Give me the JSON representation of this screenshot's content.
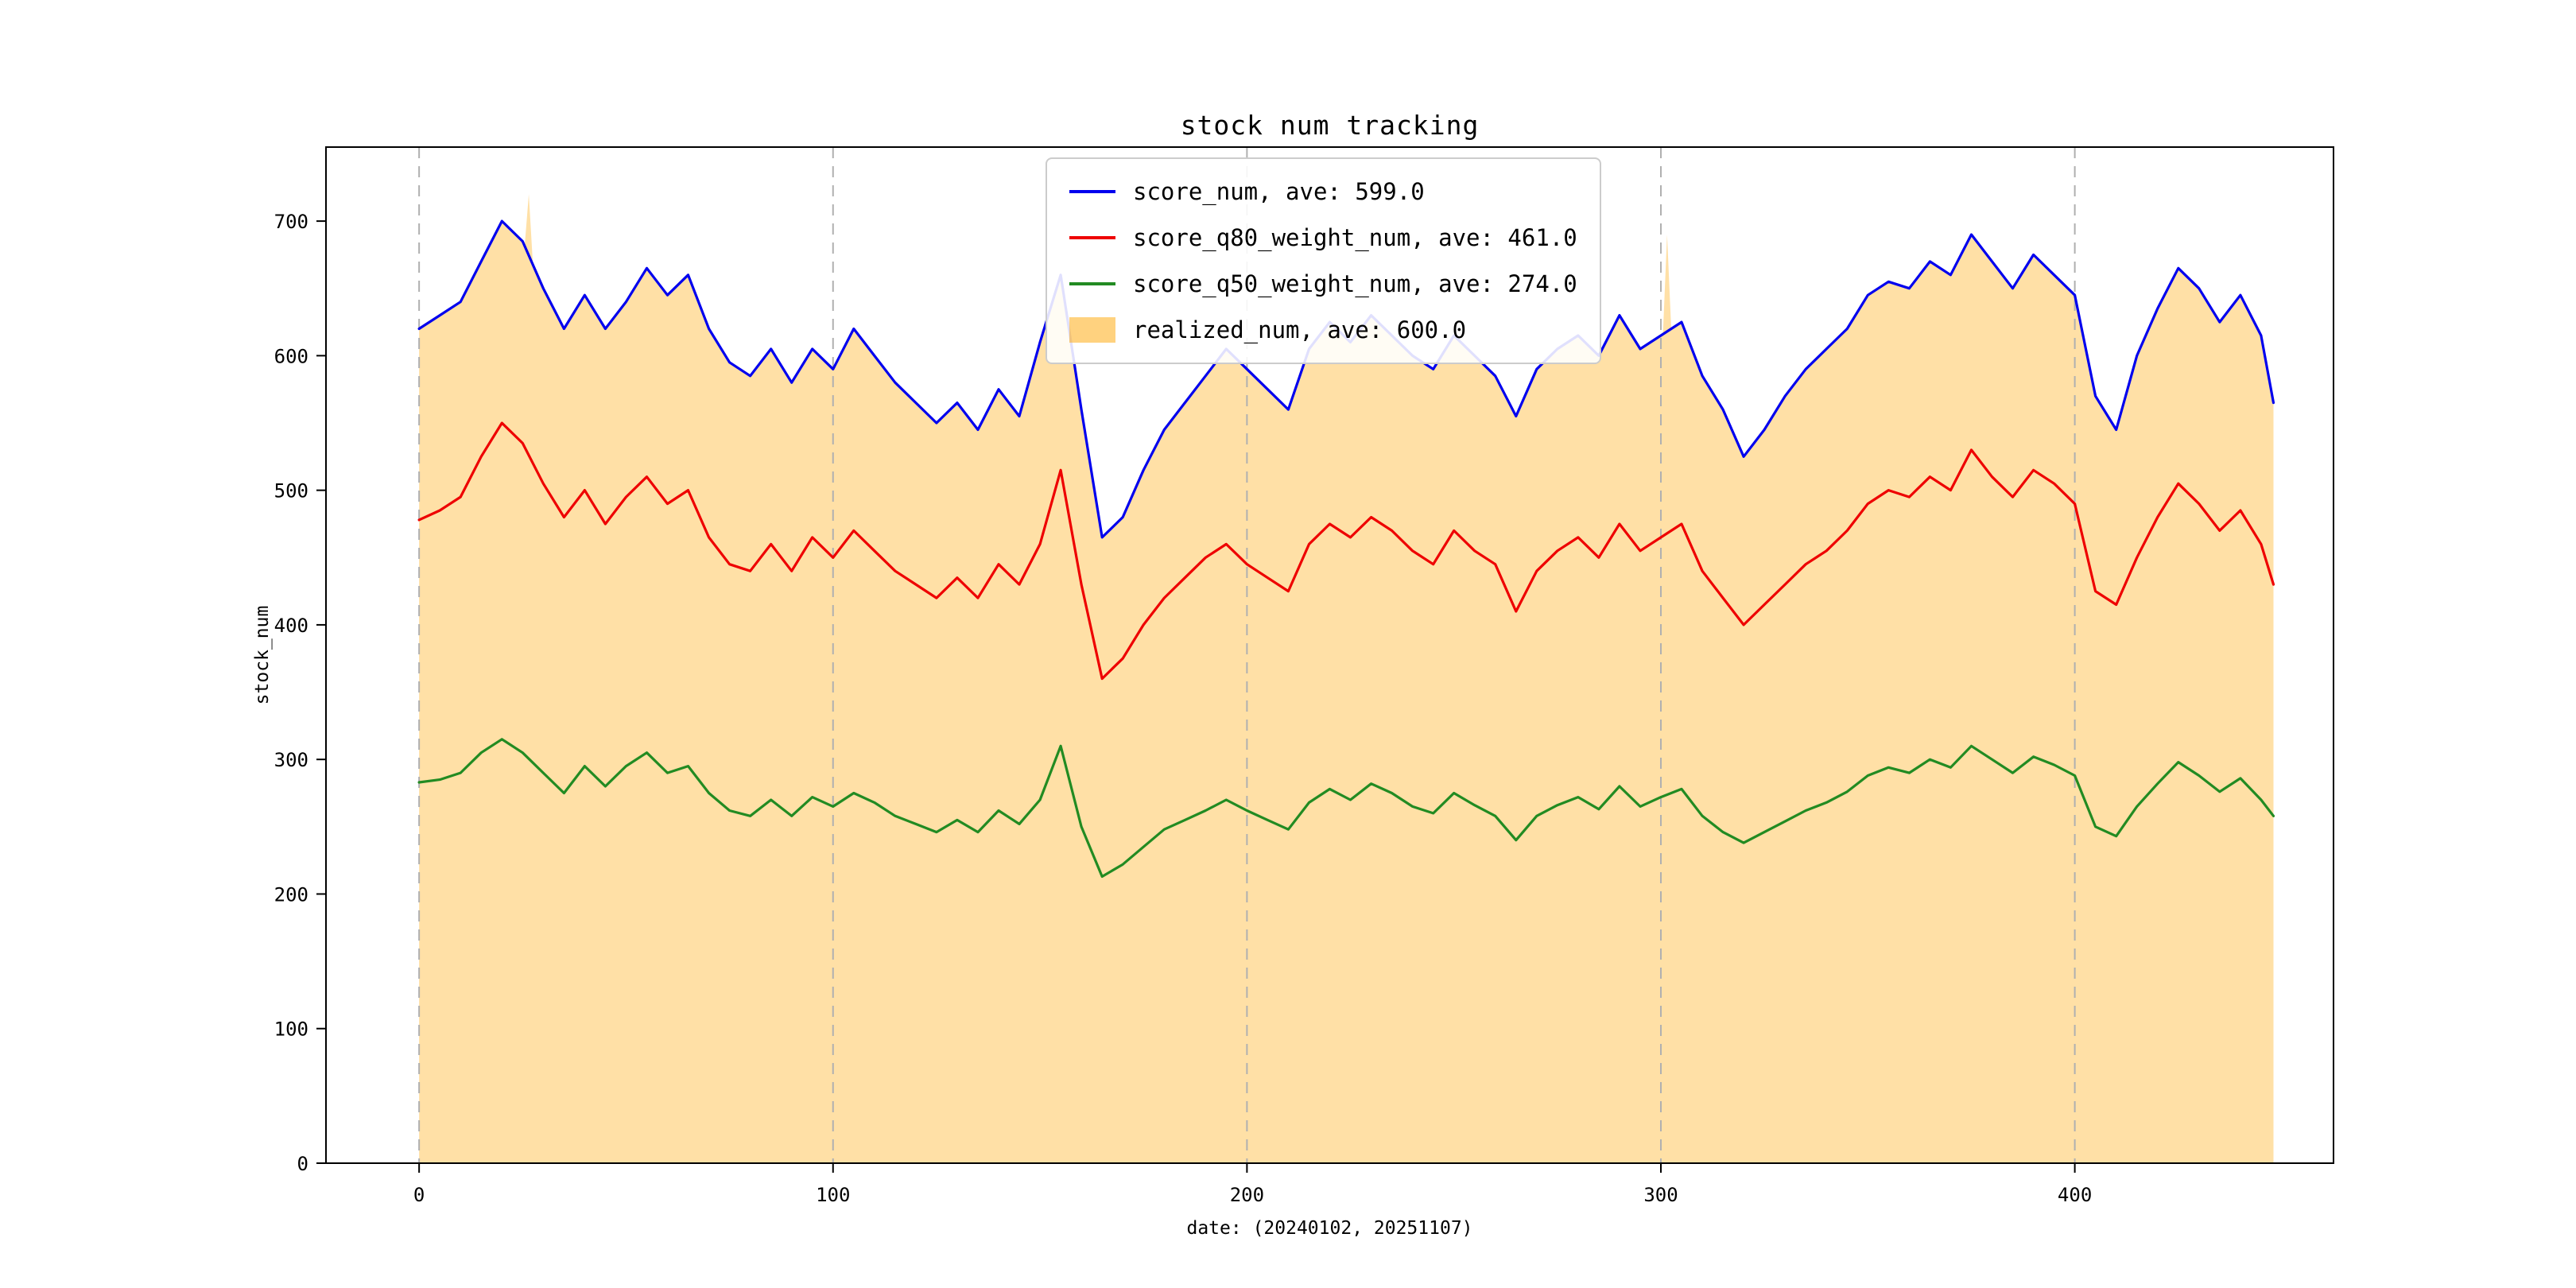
{
  "chart_data": {
    "type": "line",
    "title": "stock num tracking",
    "xlabel": "date: (20240102, 20251107)",
    "ylabel": "stock_num",
    "x_ticks": [
      0,
      100,
      200,
      300,
      400
    ],
    "y_ticks": [
      0,
      100,
      200,
      300,
      400,
      500,
      600,
      700
    ],
    "xlim": [
      -22.5,
      462.5
    ],
    "ylim": [
      0,
      755
    ],
    "grid": {
      "axis": "x",
      "style": "dashed",
      "color": "#b0b0b0"
    },
    "legend_position": "upper center-left",
    "sample_x": [
      0,
      5,
      10,
      15,
      20,
      25,
      30,
      35,
      40,
      45,
      50,
      55,
      60,
      65,
      70,
      75,
      80,
      85,
      90,
      95,
      100,
      105,
      110,
      115,
      120,
      125,
      130,
      135,
      140,
      145,
      150,
      155,
      160,
      165,
      170,
      175,
      180,
      185,
      190,
      195,
      200,
      205,
      210,
      215,
      220,
      225,
      230,
      235,
      240,
      245,
      250,
      255,
      260,
      265,
      270,
      275,
      280,
      285,
      290,
      295,
      300,
      305,
      310,
      315,
      320,
      325,
      330,
      335,
      340,
      345,
      350,
      355,
      360,
      365,
      370,
      375,
      380,
      385,
      390,
      395,
      400,
      405,
      410,
      415,
      420,
      425,
      430,
      435,
      440,
      445,
      448
    ],
    "series": [
      {
        "id": "score_num",
        "name": "score_num, ave: 599.0",
        "type": "line",
        "color": "#0000ee",
        "values": [
          620,
          630,
          640,
          670,
          700,
          685,
          650,
          620,
          645,
          620,
          640,
          665,
          645,
          660,
          620,
          595,
          585,
          605,
          580,
          605,
          590,
          620,
          600,
          580,
          565,
          550,
          565,
          545,
          575,
          555,
          610,
          660,
          560,
          465,
          480,
          515,
          545,
          565,
          585,
          605,
          590,
          575,
          560,
          605,
          625,
          610,
          630,
          615,
          600,
          590,
          615,
          600,
          585,
          555,
          590,
          605,
          615,
          600,
          630,
          605,
          615,
          625,
          585,
          560,
          525,
          545,
          570,
          590,
          605,
          620,
          645,
          655,
          650,
          670,
          660,
          690,
          670,
          650,
          675,
          660,
          645,
          570,
          545,
          600,
          635,
          665,
          650,
          625,
          645,
          615,
          565
        ]
      },
      {
        "id": "score_q80_weight_num",
        "name": "score_q80_weight_num, ave: 461.0",
        "type": "line",
        "color": "#ee0000",
        "values": [
          478,
          485,
          495,
          525,
          550,
          535,
          505,
          480,
          500,
          475,
          495,
          510,
          490,
          500,
          465,
          445,
          440,
          460,
          440,
          465,
          450,
          470,
          455,
          440,
          430,
          420,
          435,
          420,
          445,
          430,
          460,
          515,
          430,
          360,
          375,
          400,
          420,
          435,
          450,
          460,
          445,
          435,
          425,
          460,
          475,
          465,
          480,
          470,
          455,
          445,
          470,
          455,
          445,
          410,
          440,
          455,
          465,
          450,
          475,
          455,
          465,
          475,
          440,
          420,
          400,
          415,
          430,
          445,
          455,
          470,
          490,
          500,
          495,
          510,
          500,
          530,
          510,
          495,
          515,
          505,
          490,
          425,
          415,
          450,
          480,
          505,
          490,
          470,
          485,
          460,
          430
        ]
      },
      {
        "id": "score_q50_weight_num",
        "name": "score_q50_weight_num, ave: 274.0",
        "type": "line",
        "color": "#228b22",
        "values": [
          283,
          285,
          290,
          305,
          315,
          305,
          290,
          275,
          295,
          280,
          295,
          305,
          290,
          295,
          275,
          262,
          258,
          270,
          258,
          272,
          265,
          275,
          268,
          258,
          252,
          246,
          255,
          246,
          262,
          252,
          270,
          310,
          250,
          213,
          222,
          235,
          248,
          255,
          262,
          270,
          262,
          255,
          248,
          268,
          278,
          270,
          282,
          275,
          265,
          260,
          275,
          266,
          258,
          240,
          258,
          266,
          272,
          263,
          280,
          265,
          272,
          278,
          258,
          246,
          238,
          246,
          254,
          262,
          268,
          276,
          288,
          294,
          290,
          300,
          294,
          310,
          300,
          290,
          302,
          296,
          288,
          250,
          243,
          265,
          282,
          298,
          288,
          276,
          286,
          270,
          258
        ]
      },
      {
        "id": "realized_num",
        "name": "realized_num, ave: 600.0",
        "type": "area",
        "color": "rgba(255,165,0,0.35)",
        "legend_color": "rgba(255,165,0,0.5)",
        "values": [
          620,
          630,
          640,
          670,
          700,
          685,
          650,
          620,
          645,
          620,
          640,
          665,
          645,
          660,
          620,
          595,
          585,
          605,
          580,
          605,
          590,
          620,
          600,
          580,
          565,
          550,
          565,
          545,
          575,
          555,
          610,
          660,
          560,
          465,
          480,
          515,
          545,
          565,
          585,
          605,
          590,
          575,
          560,
          605,
          625,
          610,
          630,
          615,
          600,
          590,
          615,
          600,
          585,
          555,
          590,
          605,
          615,
          600,
          630,
          605,
          615,
          625,
          585,
          560,
          525,
          545,
          570,
          590,
          605,
          620,
          645,
          655,
          650,
          670,
          660,
          690,
          670,
          650,
          675,
          660,
          645,
          570,
          545,
          600,
          635,
          665,
          650,
          625,
          645,
          615,
          565
        ],
        "spikes": [
          {
            "x": 26.5,
            "value": 720
          },
          {
            "x": 301.5,
            "value": 690
          }
        ]
      }
    ]
  }
}
